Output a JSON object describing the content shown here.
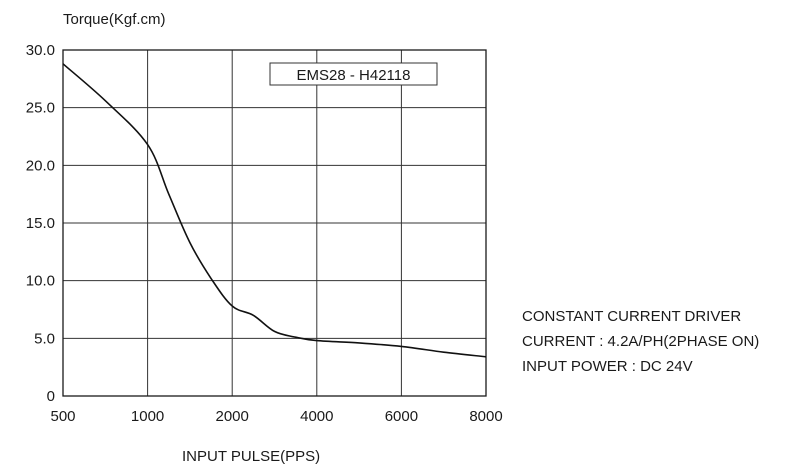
{
  "chart_data": {
    "type": "line",
    "ylabel": "Torque(Kgf.cm)",
    "xlabel": "INPUT PULSE(PPS)",
    "x_ticks": [
      "500",
      "1000",
      "2000",
      "4000",
      "6000",
      "8000"
    ],
    "y_ticks": [
      "0",
      "5.0",
      "10.0",
      "15.0",
      "20.0",
      "25.0",
      "30.0"
    ],
    "ylim": [
      0,
      30
    ],
    "grid": true,
    "x_scale": "categorical-equal-spacing",
    "series": [
      {
        "name": "EMS28 - H42118",
        "x": [
          500,
          750,
          1000,
          1250,
          1500,
          1750,
          2000,
          2500,
          3000,
          3500,
          4000,
          5000,
          6000,
          7000,
          8000
        ],
        "y": [
          28.8,
          25.6,
          21.8,
          17.5,
          13.3,
          10.2,
          7.8,
          7.0,
          5.6,
          5.1,
          4.8,
          4.6,
          4.3,
          3.8,
          3.4
        ]
      }
    ],
    "legend": {
      "label": "EMS28 - H42118",
      "position": "top-right"
    },
    "annotations": [
      "CONSTANT CURRENT DRIVER",
      "CURRENT : 4.2A/PH(2PHASE ON)",
      "INPUT POWER : DC 24V"
    ]
  }
}
